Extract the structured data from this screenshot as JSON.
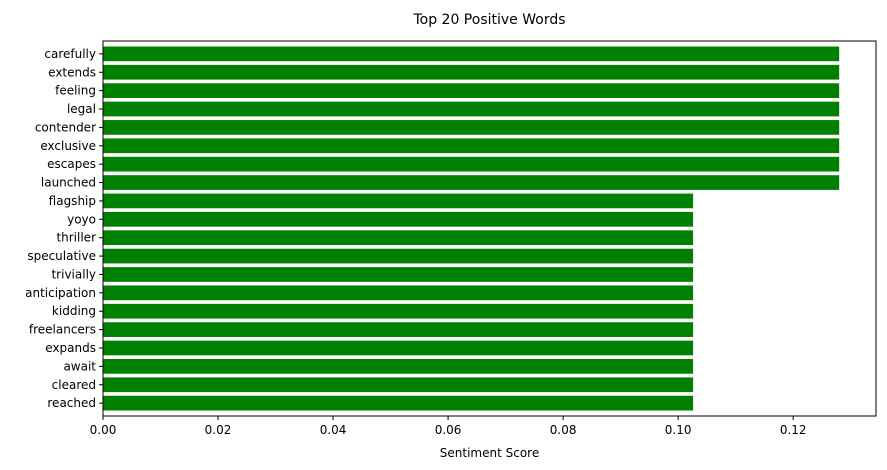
{
  "chart_data": {
    "type": "bar",
    "orientation": "horizontal",
    "title": "Top 20 Positive Words",
    "xlabel": "Sentiment Score",
    "ylabel": "",
    "categories": [
      "carefully",
      "extends",
      "feeling",
      "legal",
      "contender",
      "exclusive",
      "escapes",
      "launched",
      "flagship",
      "yoyo",
      "thriller",
      "speculative",
      "trivially",
      "anticipation",
      "kidding",
      "freelancers",
      "expands",
      "await",
      "cleared",
      "reached"
    ],
    "values": [
      0.128,
      0.128,
      0.128,
      0.128,
      0.128,
      0.128,
      0.128,
      0.128,
      0.1026,
      0.1026,
      0.1026,
      0.1026,
      0.1026,
      0.1026,
      0.1026,
      0.1026,
      0.1026,
      0.1026,
      0.1026,
      0.1026
    ],
    "xlim": [
      0,
      0.1344
    ],
    "xticks": [
      0,
      0.02,
      0.04,
      0.06,
      0.08,
      0.1,
      0.12
    ],
    "xtick_labels": [
      "0.00",
      "0.02",
      "0.04",
      "0.06",
      "0.08",
      "0.10",
      "0.12"
    ],
    "bar_color": "#008000",
    "grid": false,
    "legend": "none"
  }
}
